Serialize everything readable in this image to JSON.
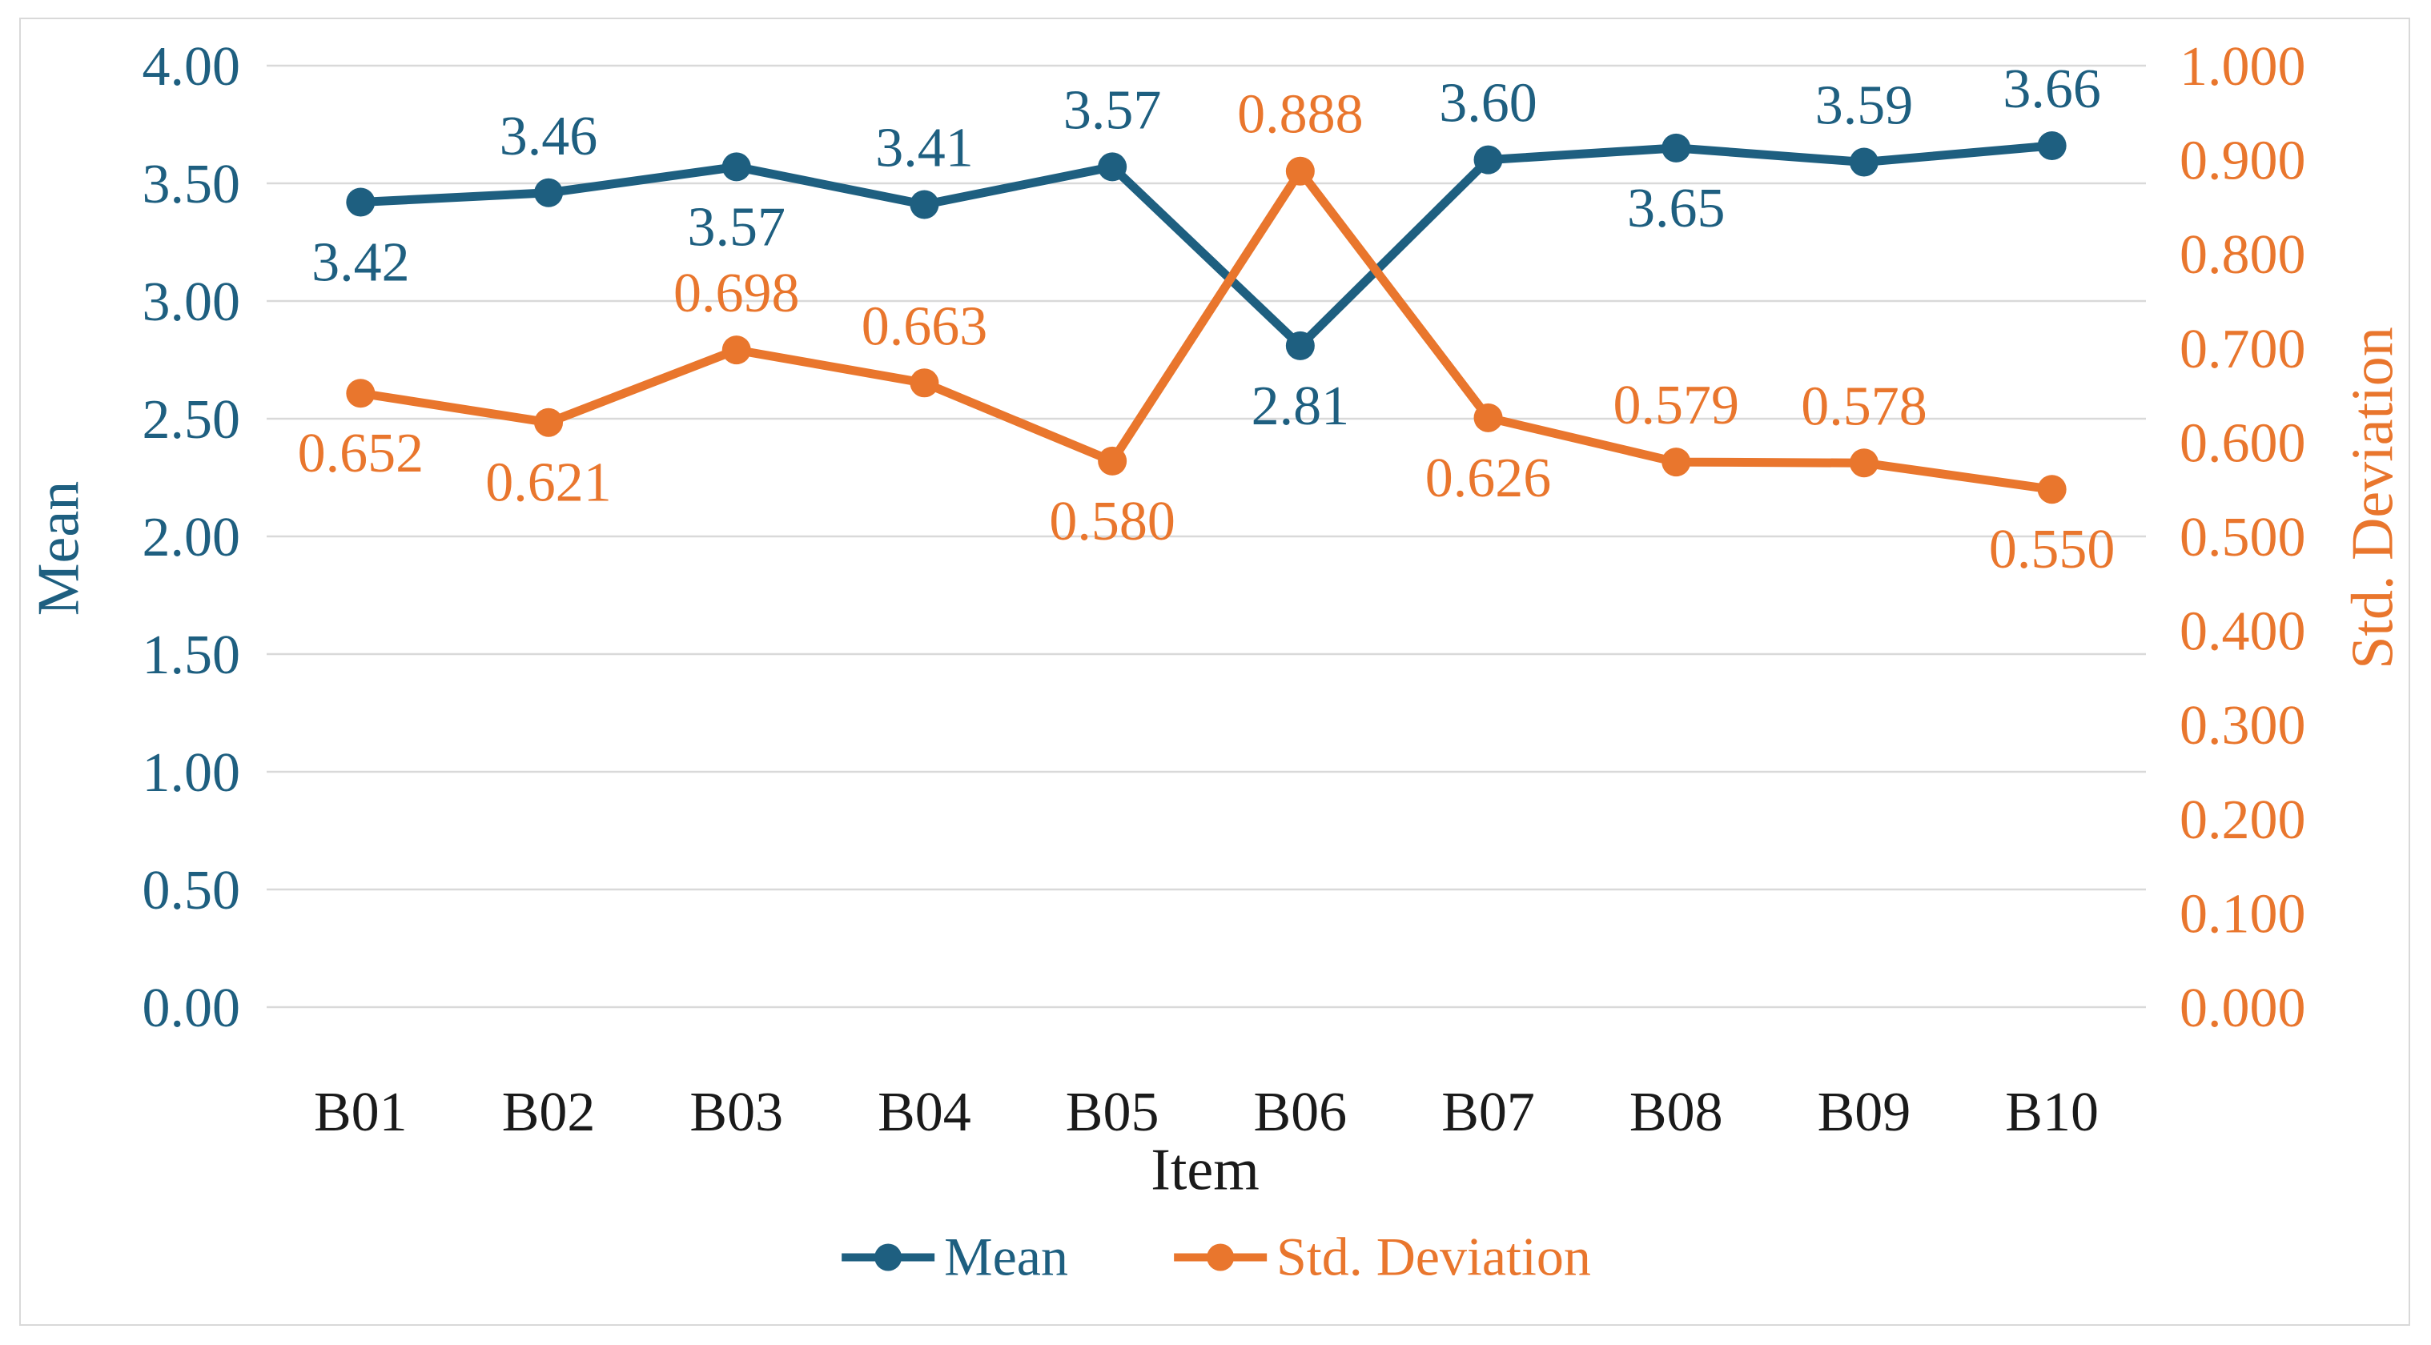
{
  "chart_data": {
    "type": "line",
    "title": "",
    "categories": [
      "B01",
      "B02",
      "B03",
      "B04",
      "B05",
      "B06",
      "B07",
      "B08",
      "B09",
      "B10"
    ],
    "series": [
      {
        "name": "Mean",
        "yaxis": "left",
        "color": "#1E5F80",
        "marker": "circle",
        "values": [
          3.42,
          3.46,
          3.57,
          3.41,
          3.57,
          2.81,
          3.6,
          3.65,
          3.59,
          3.66
        ],
        "data_labels": [
          "3.42",
          "3.46",
          "3.57",
          "3.41",
          "3.57",
          "2.81",
          "3.60",
          "3.65",
          "3.59",
          "3.66"
        ],
        "label_placement": [
          "below",
          "above",
          "below",
          "above",
          "above",
          "below",
          "above",
          "below",
          "above",
          "above"
        ]
      },
      {
        "name": "Std. Deviation",
        "yaxis": "right",
        "color": "#E9762D",
        "marker": "circle",
        "values": [
          0.652,
          0.621,
          0.698,
          0.663,
          0.58,
          0.888,
          0.626,
          0.579,
          0.578,
          0.55
        ],
        "data_labels": [
          "0.652",
          "0.621",
          "0.698",
          "0.663",
          "0.580",
          "0.888",
          "0.626",
          "0.579",
          "0.578",
          "0.550"
        ],
        "label_placement": [
          "below",
          "below",
          "above",
          "above",
          "below",
          "above",
          "below",
          "above",
          "above",
          "below"
        ]
      }
    ],
    "xlabel": "Item",
    "left_axis": {
      "title": "Mean",
      "min": 0,
      "max": 4,
      "step": 0.5,
      "ticks": [
        "4.00",
        "3.50",
        "3.00",
        "2.50",
        "2.00",
        "1.50",
        "1.00",
        "0.50",
        "0.00"
      ]
    },
    "right_axis": {
      "title": "Std. Deviation",
      "min": 0,
      "max": 1,
      "step": 0.1,
      "ticks": [
        "1.000",
        "0.900",
        "0.800",
        "0.700",
        "0.600",
        "0.500",
        "0.400",
        "0.300",
        "0.200",
        "0.100",
        "0.000"
      ]
    },
    "grid": true,
    "legend_position": "bottom",
    "legend": [
      "Mean",
      "Std. Deviation"
    ]
  },
  "colors": {
    "mean": "#1E5F80",
    "std_deviation": "#E9762D",
    "gridline": "#D9D9D9",
    "frame_border": "#D9D9D9",
    "x_text": "#1A1A1A",
    "background": "#FFFFFF"
  }
}
